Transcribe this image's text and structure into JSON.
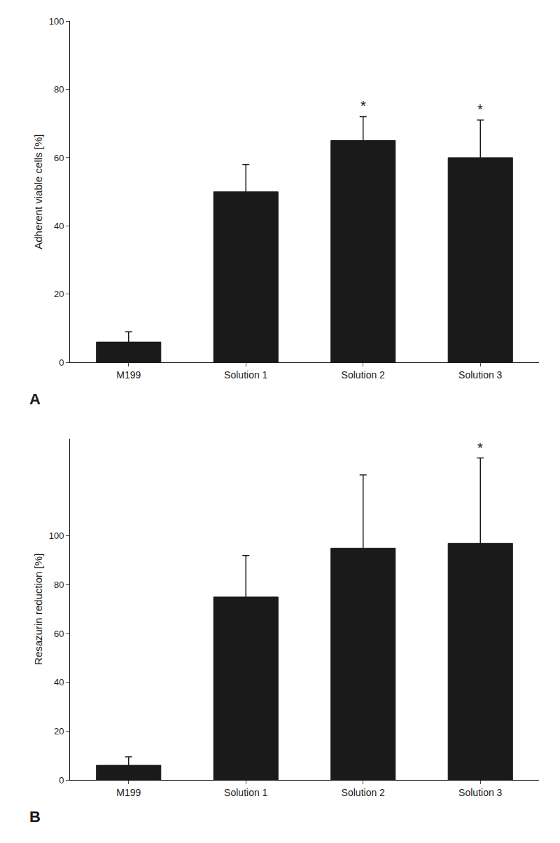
{
  "chart_data": [
    {
      "type": "bar",
      "title": "A",
      "categories": [
        "M199",
        "Solution 1",
        "Solution 2",
        "Solution 3"
      ],
      "values": [
        6.0,
        50.0,
        65.0,
        60.0
      ],
      "errors_upper": [
        3.0,
        8.0,
        7.0,
        11.0
      ],
      "errors_lower": [
        3.0,
        8.0,
        7.0,
        11.0
      ],
      "annotations": [
        {
          "x": "Solution 2",
          "text": "*"
        },
        {
          "x": "Solution 3",
          "text": "*"
        }
      ],
      "ylabel": "Adherent viable cells [%]",
      "ylim": [
        0,
        100
      ],
      "yticks": [
        0,
        20,
        40,
        60,
        80,
        100
      ],
      "color": "#1a1a1a",
      "grid": false
    },
    {
      "type": "bar",
      "title": "B",
      "categories": [
        "M199",
        "Solution 1",
        "Solution 2",
        "Solution 3"
      ],
      "values": [
        6.0,
        75.0,
        95.0,
        97.0
      ],
      "errors_upper": [
        3.5,
        17.0,
        30.0,
        35.0
      ],
      "errors_lower": [
        3.5,
        17.0,
        30.0,
        35.0
      ],
      "annotations": [
        {
          "x": "Solution 3",
          "text": "*"
        }
      ],
      "ylabel": "Resazurin reduction [%]",
      "ylim": [
        0,
        140
      ],
      "yticks": [
        0,
        20,
        40,
        60,
        80,
        100
      ],
      "color": "#1a1a1a",
      "grid": false
    }
  ]
}
